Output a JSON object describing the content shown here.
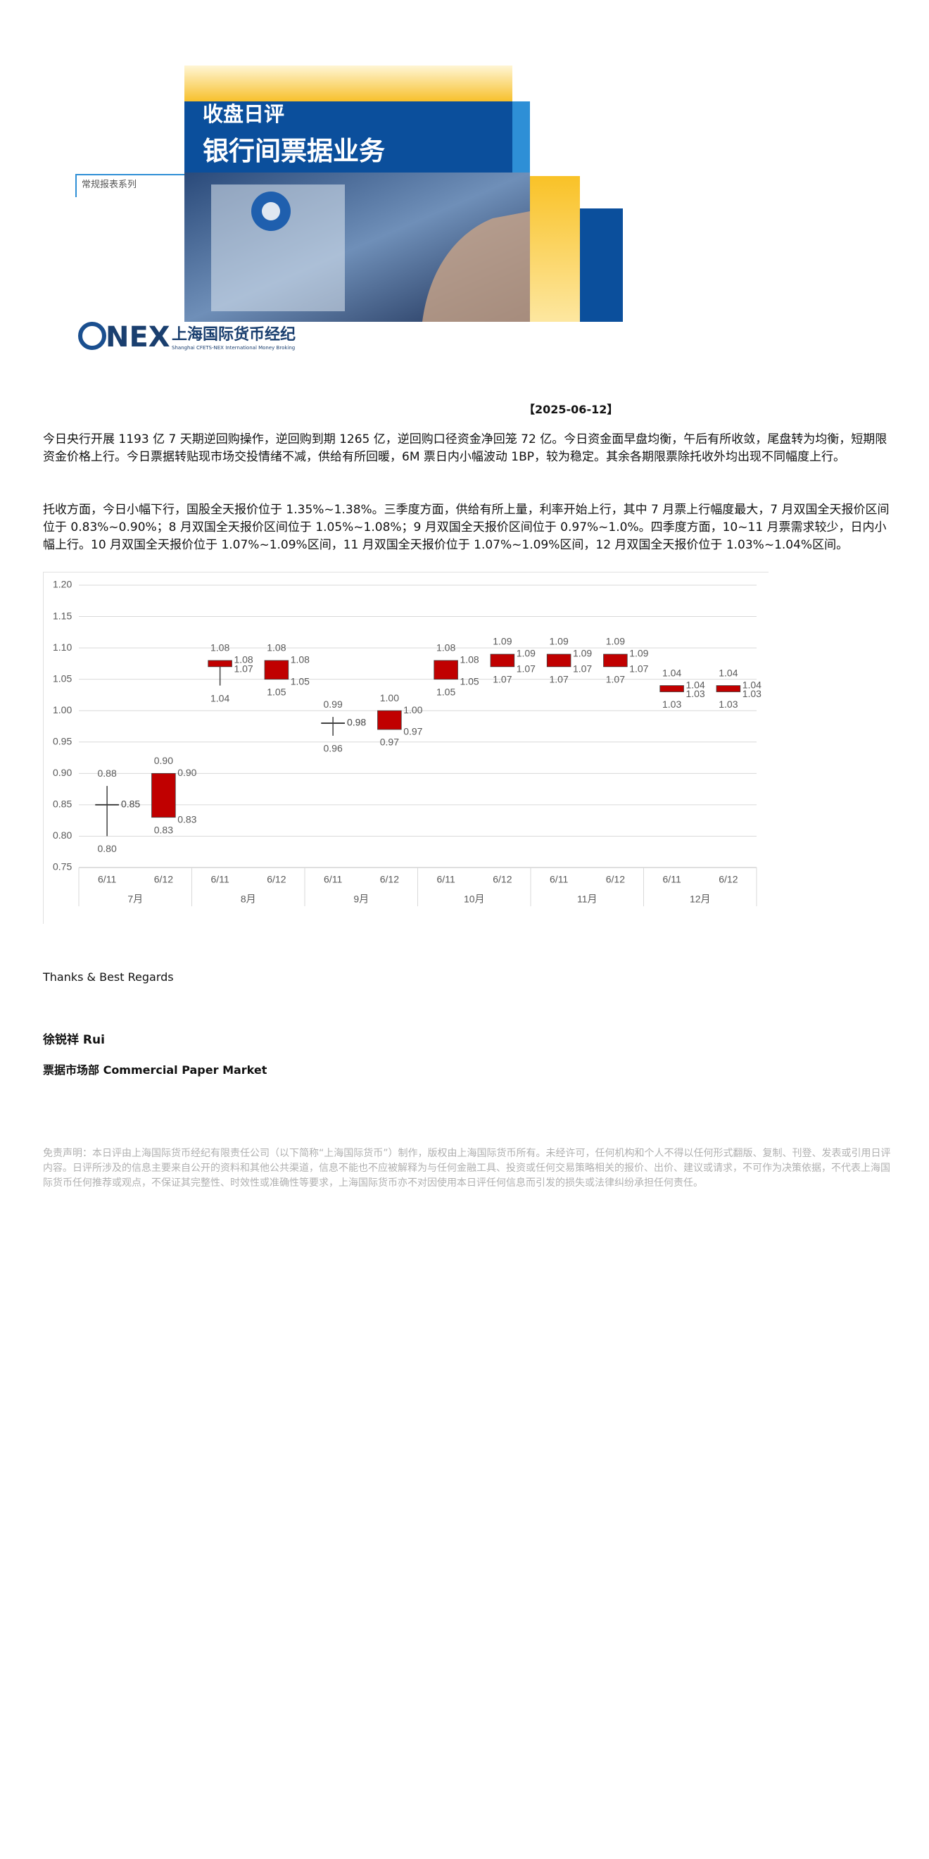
{
  "header": {
    "title": "收盘日评",
    "subtitle": "银行间票据业务",
    "series_label": "常规报表系列",
    "logo": "NEX",
    "company": "上海国际货币经纪",
    "company_en": "Shanghai CFETS-NEX International Money Broking"
  },
  "date": "【2025-06-12】",
  "paragraphs": [
    "今日央行开展 1193 亿 7 天期逆回购操作，逆回购到期 1265 亿，逆回购口径资金净回笼 72 亿。今日资金面早盘均衡，午后有所收敛，尾盘转为均衡，短期限资金价格上行。今日票据转贴现市场交投情绪不减，供给有所回暖，6M 票日内小幅波动 1BP，较为稳定。其余各期限票除托收外均出现不同幅度上行。",
    "托收方面，今日小幅下行，国股全天报价位于 1.35%~1.38%。三季度方面，供给有所上量，利率开始上行，其中 7 月票上行幅度最大，7 月双国全天报价区间位于 0.83%~0.90%；8 月双国全天报价区间位于 1.05%~1.08%；9 月双国全天报价区间位于 0.97%~1.0%。四季度方面，10~11 月票需求较少，日内小幅上行。10 月双国全天报价位于 1.07%~1.09%区间，11 月双国全天报价位于 1.07%~1.09%区间，12 月双国全天报价位于 1.03%~1.04%区间。"
  ],
  "chart_data": {
    "type": "candlestick",
    "color": "#c00000",
    "categories": [
      "6/11",
      "6/12",
      "6/11",
      "6/12",
      "6/11",
      "6/12",
      "6/11",
      "6/12",
      "6/11",
      "6/12",
      "6/11",
      "6/12"
    ],
    "groups": [
      "7月",
      "8月",
      "9月",
      "10月",
      "11月",
      "12月"
    ],
    "open": {
      "values": [
        0.85,
        0.9,
        1.08,
        1.08,
        0.98,
        1.0,
        1.08,
        1.09,
        1.09,
        1.09,
        1.04,
        1.04
      ],
      "value_labels": [
        "0.85",
        "0.90",
        "1.08",
        "1.08",
        "0.98",
        "1.00",
        "1.08",
        "1.09",
        "1.09",
        "1.09",
        "1.04",
        "1.04"
      ]
    },
    "high": {
      "values": [
        0.88,
        0.9,
        1.08,
        1.08,
        0.99,
        1.0,
        1.08,
        1.09,
        1.09,
        1.09,
        1.04,
        1.04
      ],
      "value_labels": [
        "0.88",
        "0.90",
        "1.08",
        "1.08",
        "0.99",
        "1.00",
        "1.08",
        "1.09",
        "1.09",
        "1.09",
        "1.04",
        "1.04"
      ]
    },
    "low": {
      "values": [
        0.8,
        0.83,
        1.04,
        1.05,
        0.96,
        0.97,
        1.05,
        1.07,
        1.07,
        1.07,
        1.03,
        1.03
      ],
      "value_labels": [
        "0.80",
        "0.83",
        "1.04",
        "1.05",
        "0.96",
        "0.97",
        "1.05",
        "1.07",
        "1.07",
        "1.07",
        "1.03",
        "1.03"
      ]
    },
    "close": {
      "values": [
        0.85,
        0.83,
        1.07,
        1.05,
        0.98,
        0.97,
        1.05,
        1.07,
        1.07,
        1.07,
        1.03,
        1.03
      ],
      "value_labels": [
        "0.85",
        "0.83",
        "1.07",
        "1.05",
        "0.98",
        "0.97",
        "1.05",
        "1.07",
        "1.07",
        "1.07",
        "1.03",
        "1.03"
      ]
    },
    "ylim": [
      0.75,
      1.2
    ],
    "yticks": [
      0.75,
      {
        "value": 0.8,
        "label": "0.80"
      },
      0.85,
      {
        "value": 0.9,
        "label": "0.90"
      },
      0.95,
      {
        "value": 1.0,
        "label": "1.00"
      },
      1.05,
      {
        "value": 1.1,
        "label": "1.10"
      },
      1.15,
      {
        "value": 1.2,
        "label": "1.20"
      }
    ],
    "grid": true
  },
  "footer": {
    "thanks": "Thanks & Best Regards",
    "name": "徐锐祥  Rui",
    "department": "票据市场部 Commercial Paper Market",
    "disclaimer": "免责声明：本日评由上海国际货币经纪有限责任公司（以下简称“上海国际货币”）制作，版权由上海国际货币所有。未经许可，任何机构和个人不得以任何形式翻版、复制、刊登、发表或引用日评内容。日评所涉及的信息主要来自公开的资料和其他公共渠道，信息不能也不应被解释为与任何金融工具、投资或任何交易策略相关的报价、出价、建议或请求，不可作为决策依据，不代表上海国际货币任何推荐或观点，不保证其完整性、时效性或准确性等要求，上海国际货币亦不对因使用本日评任何信息而引发的损失或法律纠纷承担任何责任。"
  }
}
